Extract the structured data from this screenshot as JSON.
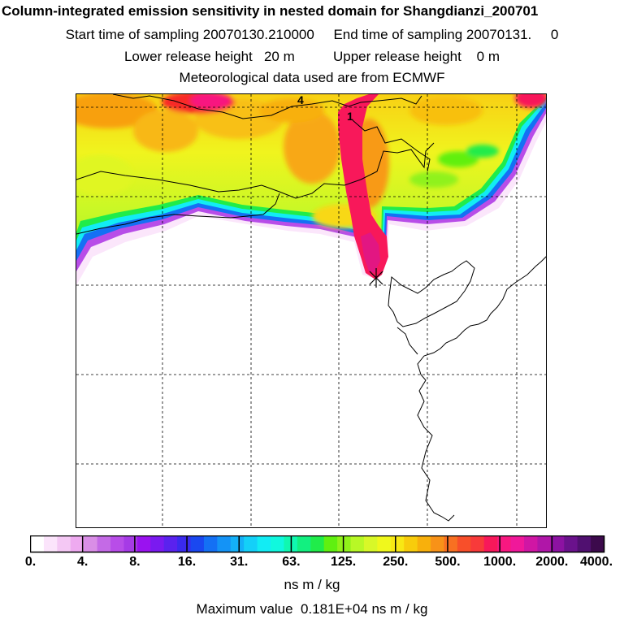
{
  "header": {
    "title": "Column-integrated emission sensitivity in nested domain for Shangdianzi_200701",
    "sampling_line": "Start time of sampling 20070130.210000     End time of sampling 20070131.     0",
    "release_line": "Lower release height   20 m          Upper release height    0 m",
    "meteo_line": "Meteorological data used are from ECMWF"
  },
  "map": {
    "markers": [
      "4",
      "1"
    ],
    "receptor": "Shangdianzi"
  },
  "legend": {
    "tick_labels": [
      "0.",
      "4.",
      "8.",
      "16.",
      "31.",
      "63.",
      "125.",
      "250.",
      "500.",
      "1000.",
      "2000.",
      "4000."
    ],
    "colors": [
      "#ffffff",
      "#fbe4fb",
      "#f4c8f4",
      "#eeaaf0",
      "#d98ee6",
      "#c46ae6",
      "#b84de8",
      "#a63be6",
      "#9a12f0",
      "#7a1af0",
      "#5a22ee",
      "#3a2aee",
      "#1a48f0",
      "#1470f4",
      "#1493f6",
      "#14b0f8",
      "#14d0f8",
      "#12ecf4",
      "#10f8de",
      "#10f8b0",
      "#12f080",
      "#20ec4a",
      "#60f010",
      "#90f21a",
      "#b8f826",
      "#d8f828",
      "#f0f81c",
      "#f8e814",
      "#f8cc0c",
      "#f8b00c",
      "#f89218",
      "#f87022",
      "#f84f2a",
      "#f83a3a",
      "#f8185a",
      "#f81880",
      "#f0189a",
      "#d016a4",
      "#b016a8",
      "#8c12a2",
      "#6a128c",
      "#501070",
      "#3c0a4c"
    ],
    "units": "ns m / kg",
    "max_value": "Maximum value  0.181E+04 ns m / kg"
  }
}
